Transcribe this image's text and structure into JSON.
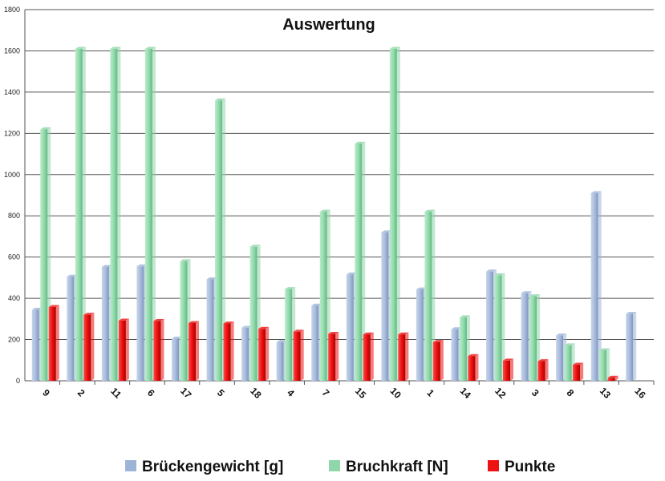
{
  "chart_data": {
    "type": "bar",
    "title": "Auswertung",
    "xlabel": "",
    "ylabel": "",
    "ylim": [
      0,
      1800
    ],
    "yticks": [
      0,
      200,
      400,
      600,
      800,
      1000,
      1200,
      1400,
      1600,
      1800
    ],
    "grid": true,
    "legend_position": "bottom",
    "categories": [
      "9",
      "2",
      "11",
      "6",
      "17",
      "5",
      "18",
      "4",
      "7",
      "15",
      "10",
      "1",
      "14",
      "12",
      "3",
      "8",
      "13",
      "16"
    ],
    "series": [
      {
        "name": "Brückengewicht [g]",
        "color": "#9db4d6",
        "values": [
          345,
          505,
          552,
          555,
          205,
          492,
          257,
          188,
          365,
          516,
          720,
          443,
          250,
          530,
          425,
          220,
          910,
          325
        ]
      },
      {
        "name": "Bruchkraft [N]",
        "color": "#8fd6a9",
        "values": [
          1220,
          1610,
          1610,
          1610,
          580,
          1360,
          650,
          445,
          820,
          1150,
          1610,
          820,
          308,
          512,
          410,
          172,
          148,
          0
        ]
      },
      {
        "name": "Punkte",
        "color": "#ee1111",
        "values": [
          358,
          320,
          292,
          290,
          280,
          278,
          252,
          238,
          228,
          225,
          225,
          188,
          120,
          98,
          95,
          78,
          15,
          0
        ]
      }
    ]
  }
}
